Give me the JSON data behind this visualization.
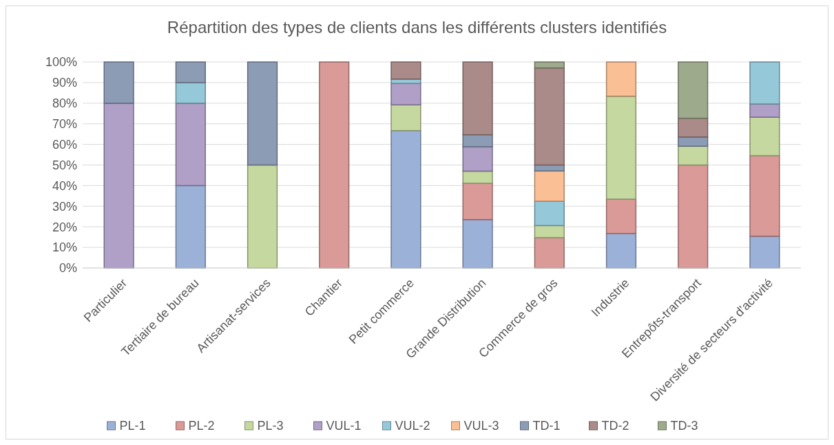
{
  "chart_data": {
    "type": "bar",
    "title": "Répartition des types de clients dans les différents clusters identifiés",
    "stacked": true,
    "grid": "y",
    "legend": "bottom",
    "categories": [
      "Particulier",
      "Tertiaire de bureau",
      "Artisanat-services",
      "Chantier",
      "Petit commerce",
      "Grande Distribution",
      "Commerce de gros",
      "Industrie",
      "Entrepôts-transport",
      "Diversité de secteurs d'activité"
    ],
    "ylim": [
      0,
      100
    ],
    "yticks": [
      {
        "value": 0,
        "label": "0%"
      },
      {
        "value": 10,
        "label": "10%"
      },
      {
        "value": 20,
        "label": "20%"
      },
      {
        "value": 30,
        "label": "30%"
      },
      {
        "value": 40,
        "label": "40%"
      },
      {
        "value": 50,
        "label": "50%"
      },
      {
        "value": 60,
        "label": "60%"
      },
      {
        "value": 70,
        "label": "70%"
      },
      {
        "value": 80,
        "label": "80%"
      },
      {
        "value": 90,
        "label": "90%"
      },
      {
        "value": 100,
        "label": "100%"
      }
    ],
    "series": [
      {
        "name": "PL-1",
        "color": "#9bb1d8",
        "values": [
          0,
          40,
          0,
          0,
          66.7,
          23.5,
          0,
          16.7,
          0,
          15.4
        ]
      },
      {
        "name": "PL-2",
        "color": "#da9a98",
        "values": [
          0,
          0,
          0,
          100,
          0,
          17.6,
          14.7,
          16.7,
          50,
          39.1
        ]
      },
      {
        "name": "PL-3",
        "color": "#c5d89f",
        "values": [
          0,
          0,
          50,
          0,
          12.5,
          5.9,
          5.9,
          50,
          9.1,
          18.7
        ]
      },
      {
        "name": "VUL-1",
        "color": "#b09fc6",
        "values": [
          80,
          40,
          0,
          0,
          10.4,
          11.8,
          0,
          0,
          0,
          6.4
        ]
      },
      {
        "name": "VUL-2",
        "color": "#95c9d9",
        "values": [
          0,
          10,
          0,
          0,
          2.1,
          0,
          11.8,
          0,
          0,
          20.4
        ]
      },
      {
        "name": "VUL-3",
        "color": "#fbbf95",
        "values": [
          0,
          0,
          0,
          0,
          0,
          0,
          14.7,
          16.6,
          0,
          0
        ]
      },
      {
        "name": "TD-1",
        "color": "#8d9cb5",
        "values": [
          20,
          10,
          50,
          0,
          0,
          5.9,
          2.9,
          0,
          4.5,
          0
        ]
      },
      {
        "name": "TD-2",
        "color": "#ab8b89",
        "values": [
          0,
          0,
          0,
          0,
          8.3,
          35.3,
          47.1,
          0,
          9.1,
          0
        ]
      },
      {
        "name": "TD-3",
        "color": "#9eaa8c",
        "values": [
          0,
          0,
          0,
          0,
          0,
          0,
          2.9,
          0,
          27.3,
          0
        ]
      }
    ]
  }
}
